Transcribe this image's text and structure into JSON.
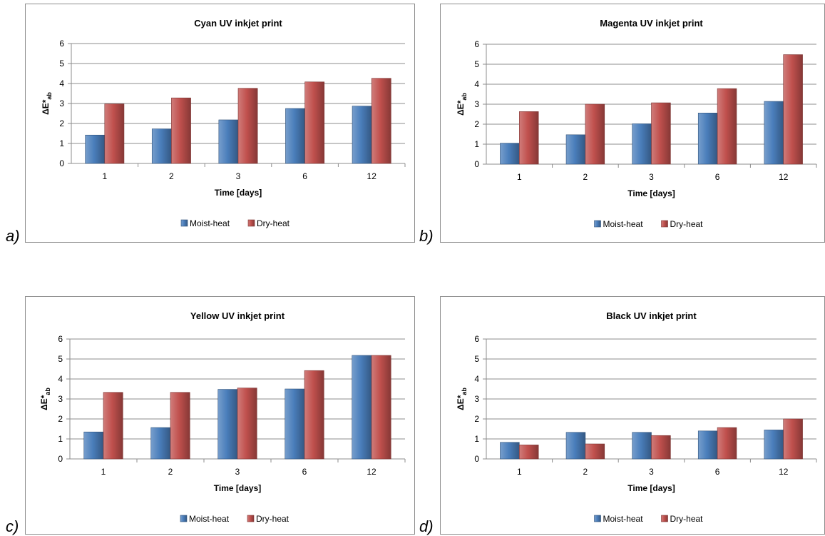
{
  "panel_labels": [
    "a)",
    "b)",
    "c)",
    "d)"
  ],
  "chart_data": [
    {
      "type": "bar",
      "title": "Cyan UV inkjet print",
      "categories": [
        "1",
        "2",
        "3",
        "6",
        "12"
      ],
      "series": [
        {
          "name": "Moist-heat",
          "values": [
            1.42,
            1.73,
            2.18,
            2.75,
            2.87
          ]
        },
        {
          "name": "Dry-heat",
          "values": [
            2.98,
            3.28,
            3.76,
            4.08,
            4.26
          ]
        }
      ],
      "xlabel": "Time [days]",
      "ylabel_main": "ΔE*",
      "ylabel_sub": "ab",
      "ylim": [
        0,
        6
      ],
      "yticks": [
        "0",
        "1",
        "2",
        "3",
        "4",
        "5",
        "6"
      ],
      "grid": true,
      "legend": "bottom"
    },
    {
      "type": "bar",
      "title": "Magenta UV inkjet print",
      "categories": [
        "1",
        "2",
        "3",
        "6",
        "12"
      ],
      "series": [
        {
          "name": "Moist-heat",
          "values": [
            1.05,
            1.47,
            2.02,
            2.56,
            3.14
          ]
        },
        {
          "name": "Dry-heat",
          "values": [
            2.63,
            3.0,
            3.07,
            3.78,
            5.48
          ]
        }
      ],
      "xlabel": "Time [days]",
      "ylabel_main": "ΔE*",
      "ylabel_sub": "ab",
      "ylim": [
        0,
        6
      ],
      "yticks": [
        "0",
        "1",
        "2",
        "3",
        "4",
        "5",
        "6"
      ],
      "grid": true,
      "legend": "bottom"
    },
    {
      "type": "bar",
      "title": "Yellow UV inkjet print",
      "categories": [
        "1",
        "2",
        "3",
        "6",
        "12"
      ],
      "series": [
        {
          "name": "Moist-heat",
          "values": [
            1.35,
            1.57,
            3.48,
            3.5,
            5.18
          ]
        },
        {
          "name": "Dry-heat",
          "values": [
            3.33,
            3.33,
            3.55,
            4.42,
            5.18
          ]
        }
      ],
      "xlabel": "Time [days]",
      "ylabel_main": "ΔE*",
      "ylabel_sub": "ab",
      "ylim": [
        0,
        6
      ],
      "yticks": [
        "0",
        "1",
        "2",
        "3",
        "4",
        "5",
        "6"
      ],
      "grid": true,
      "legend": "bottom"
    },
    {
      "type": "bar",
      "title": "Black UV inkjet print",
      "categories": [
        "1",
        "2",
        "3",
        "6",
        "12"
      ],
      "series": [
        {
          "name": "Moist-heat",
          "values": [
            0.83,
            1.33,
            1.33,
            1.4,
            1.45
          ]
        },
        {
          "name": "Dry-heat",
          "values": [
            0.7,
            0.75,
            1.17,
            1.57,
            2.0
          ]
        }
      ],
      "xlabel": "Time [days]",
      "ylabel_main": "ΔE*",
      "ylabel_sub": "ab",
      "ylim": [
        0,
        6
      ],
      "yticks": [
        "0",
        "1",
        "2",
        "3",
        "4",
        "5",
        "6"
      ],
      "grid": true,
      "legend": "bottom"
    }
  ],
  "colors": {
    "moist_heat": "#4a7ebb",
    "dry_heat": "#c0504d",
    "grid": "#8c8c8c",
    "border": "#8c8c8c"
  }
}
